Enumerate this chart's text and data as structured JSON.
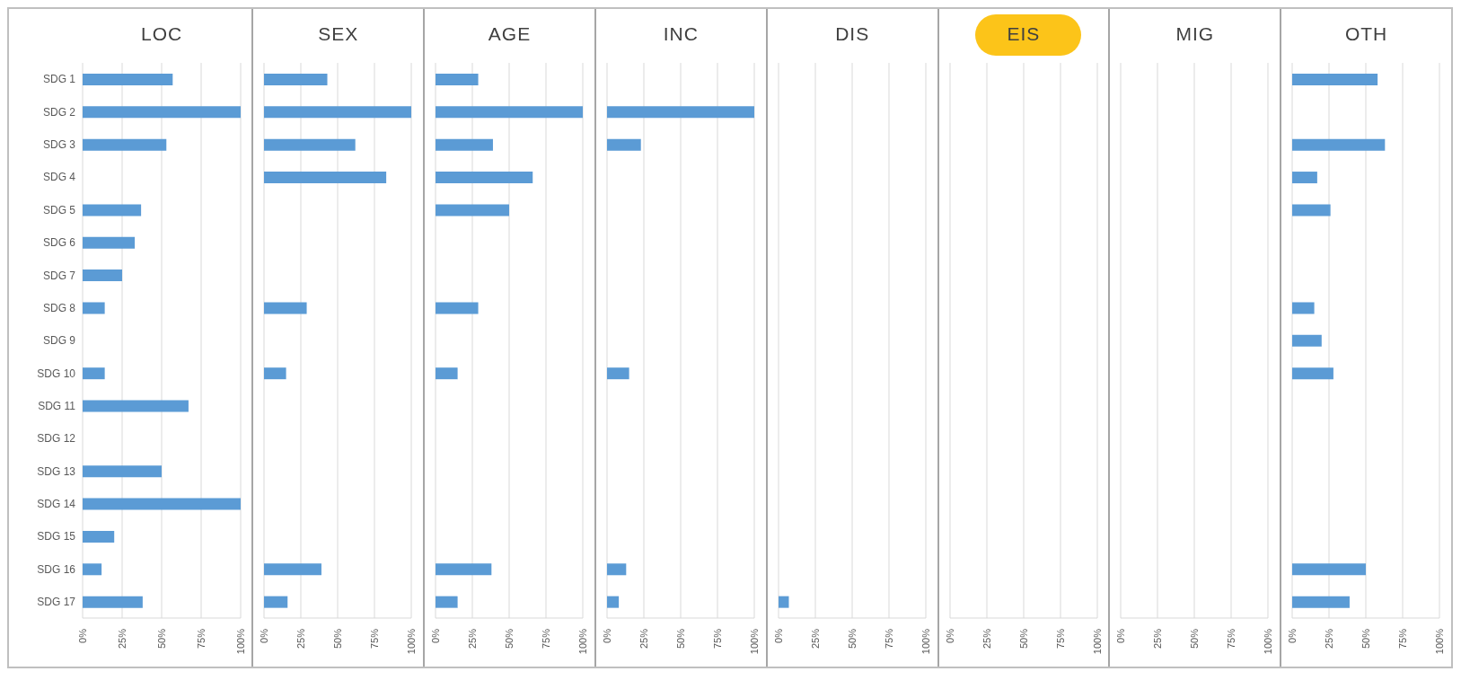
{
  "chart_data": [
    {
      "type": "bar",
      "orientation": "horizontal",
      "title": "LOC",
      "categories": [
        "SDG 1",
        "SDG 2",
        "SDG 3",
        "SDG 4",
        "SDG 5",
        "SDG 6",
        "SDG 7",
        "SDG 8",
        "SDG 9",
        "SDG 10",
        "SDG 11",
        "SDG 12",
        "SDG 13",
        "SDG 14",
        "SDG 15",
        "SDG 16",
        "SDG 17"
      ],
      "values": [
        57,
        100,
        53,
        null,
        37,
        33,
        25,
        14,
        null,
        14,
        67,
        null,
        50,
        100,
        20,
        12,
        38
      ],
      "color": "#5b9bd5",
      "xlim": [
        0,
        100
      ],
      "xticks": [
        {
          "value": 0,
          "label": "0%"
        },
        {
          "value": 25,
          "label": "25%"
        },
        {
          "value": 50,
          "label": "50%"
        },
        {
          "value": 75,
          "label": "75%"
        },
        {
          "value": 100,
          "label": "100%"
        }
      ],
      "grid": "x"
    },
    {
      "type": "bar",
      "orientation": "horizontal",
      "title": "SEX",
      "values": [
        43,
        100,
        62,
        83,
        null,
        null,
        null,
        29,
        null,
        15,
        null,
        null,
        null,
        null,
        null,
        39,
        16
      ],
      "color": "#5b9bd5",
      "xlim": [
        0,
        100
      ],
      "xticks": [
        {
          "value": 0,
          "label": "0%"
        },
        {
          "value": 25,
          "label": "25%"
        },
        {
          "value": 50,
          "label": "50%"
        },
        {
          "value": 75,
          "label": "75%"
        },
        {
          "value": 100,
          "label": "100%"
        }
      ],
      "grid": "x",
      "tick_labels": "x"
    },
    {
      "type": "bar",
      "orientation": "horizontal",
      "title": "AGE",
      "values": [
        29,
        100,
        39,
        66,
        50,
        null,
        null,
        29,
        null,
        15,
        null,
        null,
        null,
        null,
        null,
        38,
        15
      ],
      "color": "#5b9bd5",
      "xlim": [
        0,
        100
      ],
      "xticks": [
        {
          "value": 0,
          "label": "0%"
        },
        {
          "value": 25,
          "label": "25%"
        },
        {
          "value": 50,
          "label": "50%"
        },
        {
          "value": 75,
          "label": "75%"
        },
        {
          "value": 100,
          "label": "100%"
        }
      ],
      "grid": "x",
      "tick_labels": "x"
    },
    {
      "type": "bar",
      "orientation": "horizontal",
      "title": "INC",
      "values": [
        null,
        100,
        23,
        null,
        null,
        null,
        null,
        null,
        null,
        15,
        null,
        null,
        null,
        null,
        null,
        13,
        8
      ],
      "color": "#5b9bd5",
      "xlim": [
        0,
        100
      ],
      "xticks": [
        {
          "value": 0,
          "label": "0%"
        },
        {
          "value": 25,
          "label": "25%"
        },
        {
          "value": 50,
          "label": "50%"
        },
        {
          "value": 75,
          "label": "75%"
        },
        {
          "value": 100,
          "label": "100%"
        }
      ],
      "grid": "x",
      "tick_labels": "x"
    },
    {
      "type": "bar",
      "orientation": "horizontal",
      "title": "DIS",
      "values": [
        null,
        null,
        null,
        null,
        null,
        null,
        null,
        null,
        null,
        null,
        null,
        null,
        null,
        null,
        null,
        null,
        7
      ],
      "color": "#5b9bd5",
      "xlim": [
        0,
        100
      ],
      "xticks": [
        {
          "value": 0,
          "label": "0%"
        },
        {
          "value": 25,
          "label": "25%"
        },
        {
          "value": 50,
          "label": "50%"
        },
        {
          "value": 75,
          "label": "75%"
        },
        {
          "value": 100,
          "label": "100%"
        }
      ],
      "grid": "x",
      "tick_labels": "x"
    },
    {
      "type": "bar",
      "orientation": "horizontal",
      "title": "EIS",
      "values": [
        null,
        null,
        null,
        null,
        null,
        null,
        null,
        null,
        null,
        null,
        null,
        null,
        null,
        null,
        null,
        null,
        null
      ],
      "color": "#5b9bd5",
      "xlim": [
        0,
        100
      ],
      "xticks": [
        {
          "value": 0,
          "label": "0%"
        },
        {
          "value": 25,
          "label": "25%"
        },
        {
          "value": 50,
          "label": "50%"
        },
        {
          "value": 75,
          "label": "75%"
        },
        {
          "value": 100,
          "label": "100%"
        }
      ],
      "grid": "x",
      "tick_labels": "x"
    },
    {
      "type": "bar",
      "orientation": "horizontal",
      "title": "MIG",
      "values": [
        null,
        null,
        null,
        null,
        null,
        null,
        null,
        null,
        null,
        null,
        null,
        null,
        null,
        null,
        null,
        null,
        null
      ],
      "color": "#5b9bd5",
      "xlim": [
        0,
        100
      ],
      "xticks": [
        {
          "value": 0,
          "label": "0%"
        },
        {
          "value": 25,
          "label": "25%"
        },
        {
          "value": 50,
          "label": "50%"
        },
        {
          "value": 75,
          "label": "75%"
        },
        {
          "value": 100,
          "label": "100%"
        }
      ],
      "grid": "x",
      "tick_labels": "x"
    },
    {
      "type": "bar",
      "orientation": "horizontal",
      "title": "OTH",
      "values": [
        58,
        null,
        63,
        17,
        26,
        null,
        null,
        15,
        20,
        28,
        null,
        null,
        null,
        null,
        null,
        50,
        39
      ],
      "color": "#5b9bd5",
      "xlim": [
        0,
        100
      ],
      "xticks": [
        {
          "value": 0,
          "label": "0%"
        },
        {
          "value": 25,
          "label": "25%"
        },
        {
          "value": 50,
          "label": "50%"
        },
        {
          "value": 75,
          "label": "75%"
        },
        {
          "value": 100,
          "label": "100%"
        }
      ],
      "grid": "x",
      "tick_labels": "x"
    }
  ]
}
